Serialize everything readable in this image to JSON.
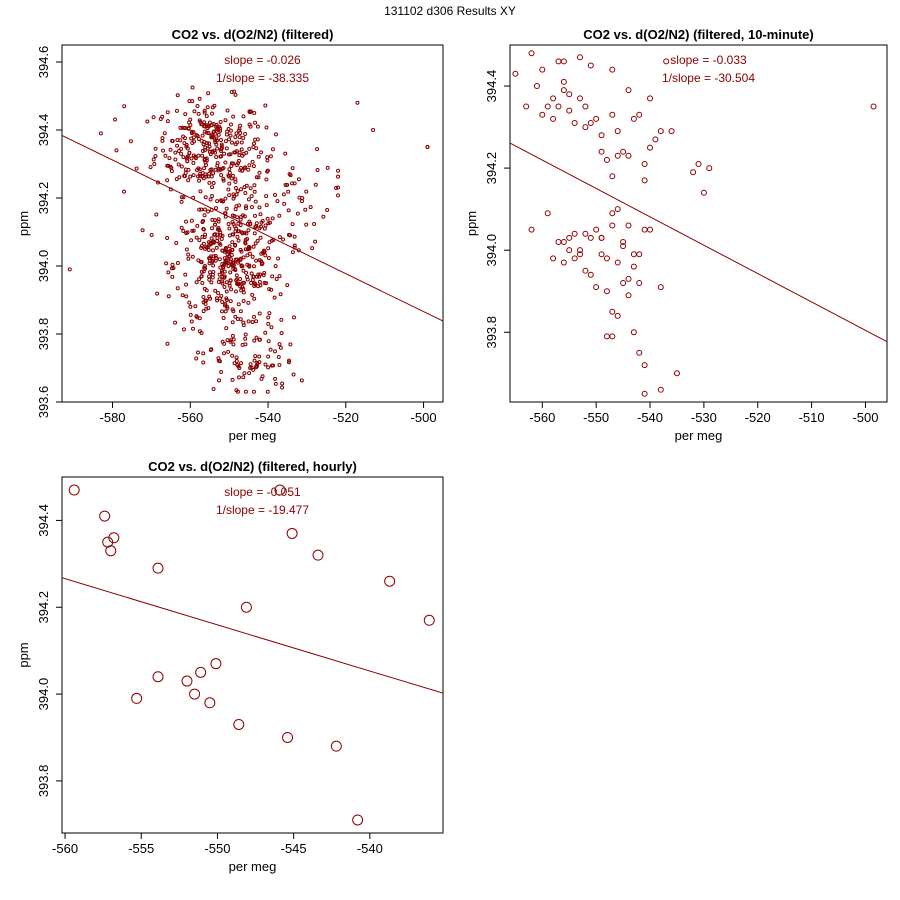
{
  "page": {
    "title": "131102   d306   Results XY"
  },
  "colors": {
    "series": "#8b0000",
    "axis": "#000000"
  },
  "chart_data": [
    {
      "type": "scatter",
      "title": "CO2 vs. d(O2/N2) (filtered)",
      "xlabel": "per meg",
      "ylabel": "ppm",
      "xlim": [
        -593,
        -495
      ],
      "ylim": [
        393.6,
        394.65
      ],
      "xticks": [
        -580,
        -560,
        -540,
        -520,
        -500
      ],
      "yticks": [
        393.6,
        393.8,
        394.0,
        394.2,
        394.4,
        394.6
      ],
      "annotations": [
        "slope = -0.026",
        "1/slope = -38.335"
      ],
      "regression": {
        "x": [
          -593,
          -495
        ],
        "y": [
          394.384,
          393.838
        ]
      },
      "clusters": [
        {
          "cx": -555,
          "cy": 394.35,
          "sx": 7,
          "sy": 0.07,
          "n": 300
        },
        {
          "cx": -550,
          "cy": 394.0,
          "sx": 7,
          "sy": 0.09,
          "n": 380
        },
        {
          "cx": -545,
          "cy": 394.2,
          "sx": 11,
          "sy": 0.08,
          "n": 120
        },
        {
          "cx": -545,
          "cy": 393.72,
          "sx": 6,
          "sy": 0.06,
          "n": 90
        }
      ],
      "outliers": [
        [
          -591,
          393.99
        ],
        [
          -583,
          394.39
        ],
        [
          -579,
          394.34
        ],
        [
          -577,
          394.47
        ],
        [
          -517,
          394.48
        ],
        [
          -513,
          394.4
        ],
        [
          -499,
          394.35
        ],
        [
          -499,
          394.35
        ]
      ],
      "point_radius": 1.5
    },
    {
      "type": "scatter",
      "title": "CO2 vs. d(O2/N2) (filtered, 10-minute)",
      "xlabel": "per meg",
      "ylabel": "ppm",
      "xlim": [
        -566,
        -496
      ],
      "ylim": [
        393.63,
        394.5
      ],
      "xticks": [
        -560,
        -550,
        -540,
        -530,
        -520,
        -510,
        -500
      ],
      "yticks": [
        393.8,
        394.0,
        394.2,
        394.4
      ],
      "annotations": [
        "slope = -0.033",
        "1/slope = -30.504"
      ],
      "regression": {
        "x": [
          -566,
          -496
        ],
        "y": [
          394.261,
          393.777
        ]
      },
      "points": [
        [
          -565,
          394.43
        ],
        [
          -563,
          394.35
        ],
        [
          -562,
          394.48
        ],
        [
          -561,
          394.4
        ],
        [
          -560,
          394.33
        ],
        [
          -560,
          394.44
        ],
        [
          -559,
          394.35
        ],
        [
          -558,
          394.37
        ],
        [
          -558,
          394.32
        ],
        [
          -557,
          394.46
        ],
        [
          -557,
          394.35
        ],
        [
          -556,
          394.46
        ],
        [
          -556,
          394.41
        ],
        [
          -555,
          394.34
        ],
        [
          -555,
          394.38
        ],
        [
          -554,
          394.31
        ],
        [
          -553,
          394.47
        ],
        [
          -553,
          394.37
        ],
        [
          -552,
          394.3
        ],
        [
          -551,
          394.45
        ],
        [
          -550,
          394.32
        ],
        [
          -549,
          394.28
        ],
        [
          -548,
          394.22
        ],
        [
          -547,
          394.44
        ],
        [
          -547,
          394.33
        ],
        [
          -546,
          394.29
        ],
        [
          -545,
          394.24
        ],
        [
          -544,
          394.39
        ],
        [
          -543,
          394.32
        ],
        [
          -542,
          394.33
        ],
        [
          -541,
          394.21
        ],
        [
          -540,
          394.37
        ],
        [
          -538,
          394.29
        ],
        [
          -537,
          394.46
        ],
        [
          -536,
          394.29
        ],
        [
          -532,
          394.19
        ],
        [
          -531,
          394.21
        ],
        [
          -530,
          394.14
        ],
        [
          -529,
          394.2
        ],
        [
          -498.5,
          394.35
        ],
        [
          -562,
          394.05
        ],
        [
          -559,
          394.09
        ],
        [
          -558,
          393.98
        ],
        [
          -556,
          394.02
        ],
        [
          -556,
          393.97
        ],
        [
          -555,
          394.03
        ],
        [
          -554,
          394.04
        ],
        [
          -553,
          394.0
        ],
        [
          -553,
          393.99
        ],
        [
          -552,
          394.04
        ],
        [
          -551,
          393.94
        ],
        [
          -550,
          394.05
        ],
        [
          -549,
          394.03
        ],
        [
          -549,
          393.99
        ],
        [
          -548,
          393.98
        ],
        [
          -547,
          394.06
        ],
        [
          -546,
          393.97
        ],
        [
          -546,
          394.1
        ],
        [
          -545,
          394.02
        ],
        [
          -545,
          393.92
        ],
        [
          -544,
          393.93
        ],
        [
          -543,
          393.99
        ],
        [
          -542,
          393.92
        ],
        [
          -541,
          394.05
        ],
        [
          -540,
          394.05
        ],
        [
          -538,
          393.91
        ],
        [
          -550,
          393.91
        ],
        [
          -548,
          393.9
        ],
        [
          -547,
          393.85
        ],
        [
          -546,
          393.84
        ],
        [
          -544,
          393.89
        ],
        [
          -543,
          393.8
        ],
        [
          -542,
          393.75
        ],
        [
          -541,
          393.72
        ],
        [
          -538,
          393.66
        ],
        [
          -535,
          393.7
        ],
        [
          -541,
          393.65
        ],
        [
          -547,
          393.79
        ],
        [
          -548,
          393.79
        ],
        [
          -552,
          393.95
        ],
        [
          -551,
          394.03
        ],
        [
          -549,
          394.03
        ],
        [
          -547,
          394.09
        ],
        [
          -545,
          394.01
        ],
        [
          -544,
          394.06
        ],
        [
          -543,
          393.96
        ],
        [
          -542,
          393.99
        ],
        [
          -557,
          394.02
        ],
        [
          -555,
          394.0
        ],
        [
          -554,
          393.98
        ],
        [
          -546,
          394.23
        ],
        [
          -540,
          394.25
        ],
        [
          -539,
          394.27
        ],
        [
          -544,
          394.23
        ],
        [
          -541,
          394.17
        ],
        [
          -549,
          394.24
        ],
        [
          -547,
          394.18
        ],
        [
          -556,
          394.39
        ],
        [
          -552,
          394.35
        ],
        [
          -551,
          394.31
        ]
      ],
      "point_radius": 2.5
    },
    {
      "type": "scatter",
      "title": "CO2 vs. d(O2/N2) (filtered, hourly)",
      "xlabel": "per meg",
      "ylabel": "ppm",
      "xlim": [
        -560.2,
        -535.2
      ],
      "ylim": [
        393.68,
        394.5
      ],
      "xticks": [
        -560,
        -555,
        -550,
        -545,
        -540
      ],
      "yticks": [
        393.8,
        394.0,
        394.2,
        394.4
      ],
      "annotations": [
        "slope = -0.051",
        "1/slope = -19.477"
      ],
      "regression": {
        "x": [
          -560.2,
          -535.2
        ],
        "y": [
          394.268,
          394.002
        ]
      },
      "points": [
        [
          -559.4,
          394.47
        ],
        [
          -557.4,
          394.41
        ],
        [
          -557.2,
          394.35
        ],
        [
          -557.0,
          394.33
        ],
        [
          -556.8,
          394.36
        ],
        [
          -553.9,
          394.29
        ],
        [
          -548.1,
          394.2
        ],
        [
          -545.9,
          394.47
        ],
        [
          -545.1,
          394.37
        ],
        [
          -543.4,
          394.32
        ],
        [
          -538.7,
          394.26
        ],
        [
          -536.1,
          394.17
        ],
        [
          -555.3,
          393.99
        ],
        [
          -553.9,
          394.04
        ],
        [
          -552.0,
          394.03
        ],
        [
          -551.5,
          394.0
        ],
        [
          -551.1,
          394.05
        ],
        [
          -550.5,
          393.98
        ],
        [
          -550.1,
          394.07
        ],
        [
          -548.6,
          393.93
        ],
        [
          -545.4,
          393.9
        ],
        [
          -542.2,
          393.88
        ],
        [
          -540.8,
          393.71
        ]
      ],
      "point_radius": 5
    }
  ]
}
